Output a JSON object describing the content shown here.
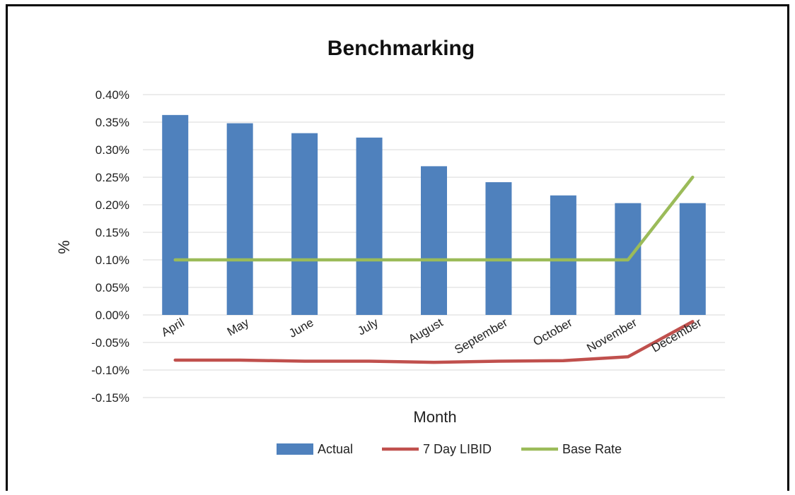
{
  "chart_data": {
    "type": "bar",
    "title": "Benchmarking",
    "xlabel": "Month",
    "ylabel": "%",
    "categories": [
      "April",
      "May",
      "June",
      "July",
      "August",
      "September",
      "October",
      "November",
      "December"
    ],
    "ylim": [
      -0.15,
      0.4
    ],
    "yticks": [
      "0.40%",
      "0.35%",
      "0.30%",
      "0.25%",
      "0.20%",
      "0.15%",
      "0.10%",
      "0.05%",
      "0.00%",
      "-0.05%",
      "-0.10%",
      "-0.15%"
    ],
    "ytick_values": [
      0.4,
      0.35,
      0.3,
      0.25,
      0.2,
      0.15,
      0.1,
      0.05,
      0.0,
      -0.05,
      -0.1,
      -0.15
    ],
    "grid": true,
    "legend_position": "bottom",
    "series": [
      {
        "name": "Actual",
        "kind": "bar",
        "color": "#4F81BD",
        "values": [
          0.363,
          0.348,
          0.33,
          0.322,
          0.27,
          0.241,
          0.217,
          0.203,
          0.203
        ]
      },
      {
        "name": "7 Day LIBID",
        "kind": "line",
        "color": "#C0504D",
        "values": [
          -0.082,
          -0.082,
          -0.084,
          -0.084,
          -0.086,
          -0.084,
          -0.083,
          -0.076,
          -0.012
        ]
      },
      {
        "name": "Base Rate",
        "kind": "line",
        "color": "#9BBB59",
        "values": [
          0.1,
          0.1,
          0.1,
          0.1,
          0.1,
          0.1,
          0.1,
          0.1,
          0.25
        ]
      }
    ]
  }
}
